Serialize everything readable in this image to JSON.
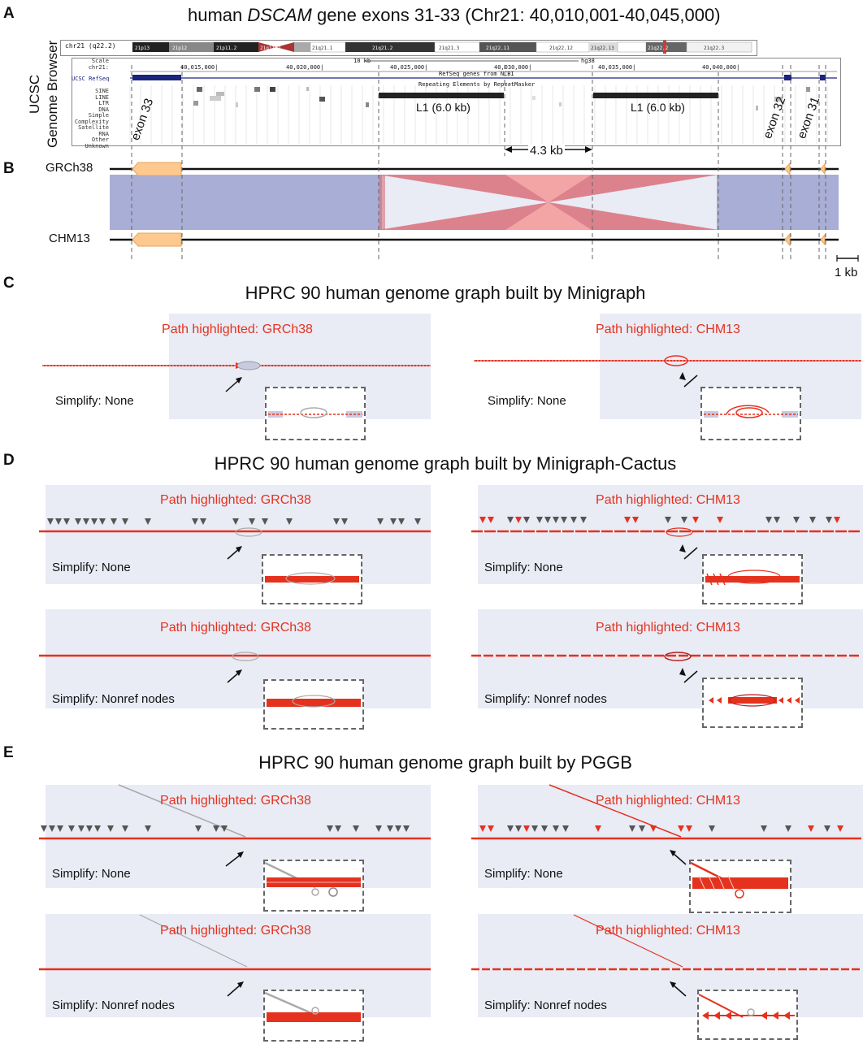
{
  "title": {
    "pre": "human ",
    "gene": "DSCAM",
    "post": " gene exons 31-33 (Chr21: 40,010,001-40,045,000)"
  },
  "panels": {
    "a": "A",
    "b": "B",
    "c": "C",
    "d": "D",
    "e": "E"
  },
  "ucsc": {
    "side_label_1": "UCSC",
    "side_label_2": "Genome Browser",
    "chrom_label": "chr21 (q22.2)",
    "bands": [
      "21p13",
      "21p12",
      "21p11.2",
      "21q11.2",
      "21q21.1",
      "21q21.2",
      "21q21.3",
      "21q22.11",
      "21q22.12",
      "21q22.13",
      "21q22.2",
      "21q22.3"
    ],
    "scale_label": "Scale",
    "chr_label": "chr21:",
    "scale_value": "10 kb",
    "assembly": "hg38",
    "coords": [
      "40,015,000|",
      "40,020,000|",
      "40,025,000|",
      "40,030,000|",
      "40,035,000|",
      "40,040,000|"
    ],
    "refseq_label": "UCSC RefSeq",
    "refseq_track": "RefSeq genes from NCBI",
    "repeat_track": "Repeating Elements by RepeatMasker",
    "repeat_classes": [
      "SINE",
      "LINE",
      "LTR",
      "DNA",
      "Simple",
      "Complexity",
      "Satellite",
      "RNA",
      "Other",
      "Unknown"
    ],
    "l1_left": "L1 (6.0 kb)",
    "l1_right": "L1 (6.0 kb)",
    "exon33": "exon 33",
    "exon32": "exon 32",
    "exon31": "exon 31",
    "gap_label": "4.3 kb"
  },
  "alignment": {
    "top": "GRCh38",
    "bottom": "CHM13",
    "scalebar": "1 kb"
  },
  "section_c": {
    "title": "HPRC 90 human genome graph built by Minigraph",
    "left_path": "Path highlighted: GRCh38",
    "right_path": "Path highlighted: CHM13",
    "left_simplify": "Simplify: None",
    "right_simplify": "Simplify: None"
  },
  "section_d": {
    "title": "HPRC 90 human genome graph built by Minigraph-Cactus",
    "tl_path": "Path highlighted: GRCh38",
    "tr_path": "Path highlighted: CHM13",
    "tl_simplify": "Simplify: None",
    "tr_simplify": "Simplify: None",
    "bl_path": "Path highlighted: GRCh38",
    "br_path": "Path highlighted: CHM13",
    "bl_simplify": "Simplify: Nonref nodes",
    "br_simplify": "Simplify: Nonref nodes"
  },
  "section_e": {
    "title": "HPRC 90 human genome graph built by PGGB",
    "tl_path": "Path highlighted: GRCh38",
    "tr_path": "Path highlighted: CHM13",
    "tl_simplify": "Simplify: None",
    "tr_simplify": "Simplify: None",
    "bl_path": "Path highlighted: GRCh38",
    "br_path": "Path highlighted: CHM13",
    "bl_simplify": "Simplify: Nonref nodes",
    "br_simplify": "Simplify: Nonref nodes"
  },
  "colors": {
    "highlight": "#e5321e",
    "graph_bg": "#e9ebf5",
    "syntenic": "#a9aed6",
    "inversion": "#f3a5a5",
    "inversion_dark": "#d9707a",
    "exon": "#fdc98e"
  }
}
